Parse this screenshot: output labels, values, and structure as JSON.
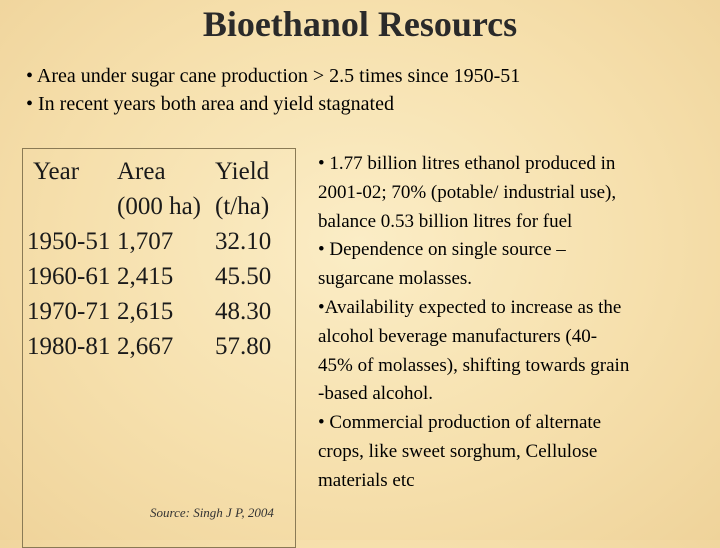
{
  "title": "Bioethanol Resourcs",
  "top_bullets": [
    "• Area under sugar cane production > 2.5 times since 1950-51",
    "• In recent years both area and yield stagnated"
  ],
  "table": {
    "headers": {
      "year": "Year",
      "area": "Area (000 ha)",
      "yield": "Yield (t/ha)"
    },
    "rows": [
      {
        "year": "1950-51",
        "area": "1,707",
        "yield": "32.10"
      },
      {
        "year": "1960-61",
        "area": "2,415",
        "yield": "45.50"
      },
      {
        "year": "1970-71",
        "area": "2,615",
        "yield": "48.30"
      },
      {
        "year": "1980-81",
        "area": "2,667",
        "yield": "57.80"
      }
    ]
  },
  "source": "Source: Singh J P, 2004",
  "right_text": "• 1.77 billion litres ethanol produced in\n2001-02; 70% (potable/ industrial use),\nbalance 0.53 billion litres for fuel\n• Dependence on single source –\nsugarcane molasses.\n•Availability expected to increase as the\nalcohol beverage manufacturers (40-\n45% of molasses), shifting towards grain\n-based alcohol.\n• Commercial production of alternate\ncrops, like sweet sorghum, Cellulose\nmaterials etc"
}
